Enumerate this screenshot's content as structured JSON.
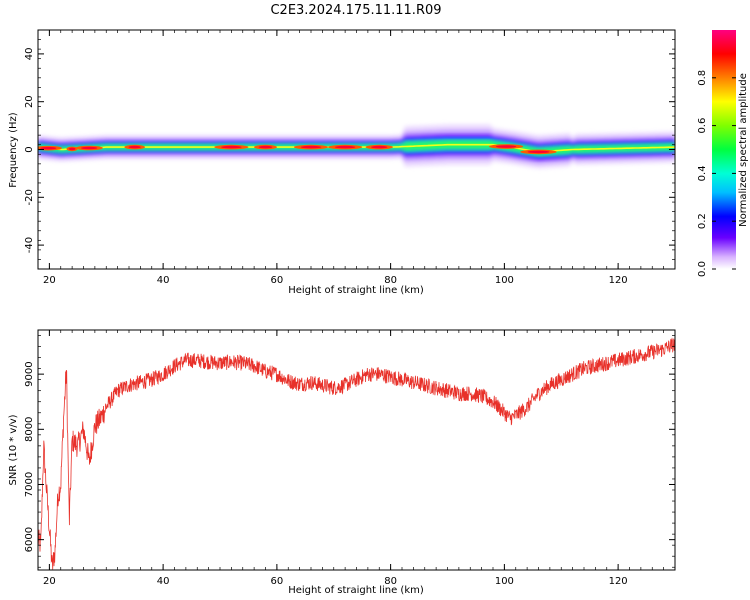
{
  "title": "C2E3.2024.175.11.11.R09",
  "chart_data": [
    {
      "type": "heatmap",
      "xlabel": "Height of straight line (km)",
      "ylabel": "Frequency (Hz)",
      "xlim": [
        18,
        130
      ],
      "ylim": [
        -50,
        50
      ],
      "x_ticks": [
        20,
        40,
        60,
        80,
        100,
        120
      ],
      "y_ticks": [
        40,
        20,
        0,
        -20,
        -40
      ],
      "description_band": "narrow band centred near 0 Hz across all heights",
      "band_center": [
        {
          "x": 18,
          "y": 1
        },
        {
          "x": 22,
          "y": 0
        },
        {
          "x": 30,
          "y": 1
        },
        {
          "x": 40,
          "y": 1
        },
        {
          "x": 60,
          "y": 1
        },
        {
          "x": 80,
          "y": 1
        },
        {
          "x": 90,
          "y": 2
        },
        {
          "x": 98,
          "y": 2
        },
        {
          "x": 101,
          "y": 1
        },
        {
          "x": 106,
          "y": -1
        },
        {
          "x": 112,
          "y": 0
        },
        {
          "x": 130,
          "y": 1
        }
      ],
      "colorbar": {
        "label": "Normalized spectral amplitude",
        "ticks": [
          "0.0",
          "0.2",
          "0.4",
          "0.6",
          "0.8"
        ],
        "range": [
          0,
          1
        ]
      }
    },
    {
      "type": "line",
      "xlabel": "Height of straight line (km)",
      "ylabel": "SNR (10 * v/v)",
      "xlim": [
        18,
        130
      ],
      "ylim": [
        5450,
        9800
      ],
      "x_ticks": [
        20,
        40,
        60,
        80,
        100,
        120
      ],
      "y_ticks": [
        6000,
        7000,
        8000,
        9000
      ],
      "series_color": "#e8312a",
      "series": [
        {
          "points": [
            [
              18,
              6000
            ],
            [
              18.5,
              5900
            ],
            [
              19,
              7700
            ],
            [
              19.5,
              6900
            ],
            [
              20,
              6200
            ],
            [
              20.5,
              5500
            ],
            [
              21,
              5800
            ],
            [
              21.5,
              6800
            ],
            [
              22,
              7000
            ],
            [
              22.5,
              8200
            ],
            [
              23,
              9100
            ],
            [
              23.5,
              6300
            ],
            [
              24,
              7800
            ],
            [
              25,
              7700
            ],
            [
              26,
              8000
            ],
            [
              27,
              7400
            ],
            [
              28,
              8050
            ],
            [
              29,
              8200
            ],
            [
              30,
              8400
            ],
            [
              32,
              8700
            ],
            [
              34,
              8800
            ],
            [
              36,
              8850
            ],
            [
              38,
              8900
            ],
            [
              40,
              9000
            ],
            [
              42,
              9150
            ],
            [
              44,
              9250
            ],
            [
              46,
              9250
            ],
            [
              48,
              9220
            ],
            [
              50,
              9200
            ],
            [
              52,
              9220
            ],
            [
              54,
              9200
            ],
            [
              56,
              9150
            ],
            [
              58,
              9050
            ],
            [
              60,
              9000
            ],
            [
              62,
              8880
            ],
            [
              64,
              8820
            ],
            [
              66,
              8850
            ],
            [
              68,
              8800
            ],
            [
              70,
              8750
            ],
            [
              72,
              8800
            ],
            [
              74,
              8900
            ],
            [
              76,
              9000
            ],
            [
              78,
              9000
            ],
            [
              80,
              8950
            ],
            [
              82,
              8900
            ],
            [
              84,
              8850
            ],
            [
              86,
              8800
            ],
            [
              88,
              8750
            ],
            [
              90,
              8700
            ],
            [
              92,
              8650
            ],
            [
              94,
              8650
            ],
            [
              96,
              8600
            ],
            [
              98,
              8500
            ],
            [
              100,
              8300
            ],
            [
              101,
              8200
            ],
            [
              102,
              8250
            ],
            [
              104,
              8400
            ],
            [
              106,
              8650
            ],
            [
              108,
              8800
            ],
            [
              110,
              8900
            ],
            [
              112,
              9000
            ],
            [
              114,
              9100
            ],
            [
              116,
              9150
            ],
            [
              118,
              9200
            ],
            [
              120,
              9250
            ],
            [
              122,
              9300
            ],
            [
              124,
              9350
            ],
            [
              126,
              9400
            ],
            [
              128,
              9450
            ],
            [
              130,
              9550
            ]
          ]
        }
      ]
    }
  ]
}
